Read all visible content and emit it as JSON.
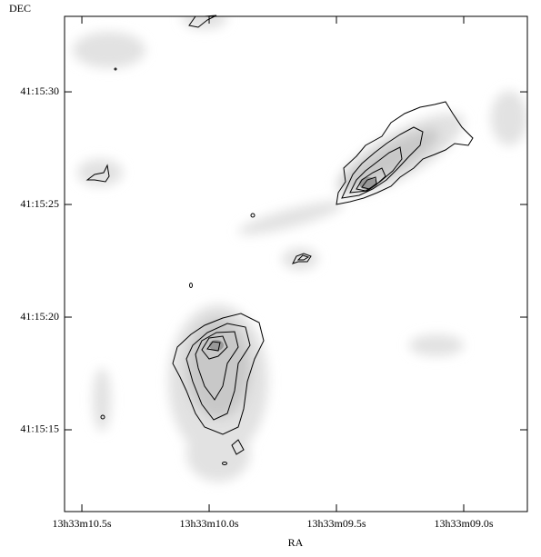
{
  "chart_data": {
    "type": "image",
    "xlabel": "RA",
    "ylabel": "DEC",
    "xlim": [
      10.568,
      8.75
    ],
    "ylim": [
      11.37,
      33.35
    ],
    "xticks": [
      {
        "value": 10.5,
        "label": "13h33m10.5s"
      },
      {
        "value": 10.0,
        "label": "13h33m10.0s"
      },
      {
        "value": 9.5,
        "label": "13h33m09.5s"
      },
      {
        "value": 9.0,
        "label": "13h33m09.0s"
      }
    ],
    "yticks": [
      {
        "value": 30,
        "label": "41:15:30"
      },
      {
        "value": 25,
        "label": "41:15:25"
      },
      {
        "value": 20,
        "label": "41:15:20"
      },
      {
        "value": 15,
        "label": "41:15:15"
      }
    ]
  }
}
